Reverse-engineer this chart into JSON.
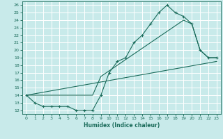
{
  "title": "",
  "xlabel": "Humidex (Indice chaleur)",
  "bg_color": "#c8eaea",
  "grid_color": "#ffffff",
  "line_color": "#1a6b5a",
  "xlim": [
    -0.5,
    23.5
  ],
  "ylim": [
    11.5,
    26.5
  ],
  "xticks": [
    0,
    1,
    2,
    3,
    4,
    5,
    6,
    7,
    8,
    9,
    10,
    11,
    12,
    13,
    14,
    15,
    16,
    17,
    18,
    19,
    20,
    21,
    22,
    23
  ],
  "yticks": [
    12,
    13,
    14,
    15,
    16,
    17,
    18,
    19,
    20,
    21,
    22,
    23,
    24,
    25,
    26
  ],
  "line1_x": [
    0,
    1,
    2,
    3,
    4,
    5,
    6,
    7,
    8,
    9,
    10,
    11,
    12,
    13,
    14,
    15,
    16,
    17,
    18,
    19,
    20,
    21,
    22,
    23
  ],
  "line1_y": [
    14,
    13,
    12.5,
    12.5,
    12.5,
    12.5,
    12,
    12,
    12,
    14,
    17,
    18.5,
    19,
    21,
    22,
    23.5,
    25,
    26,
    25,
    24.5,
    23.5,
    20,
    19,
    19
  ],
  "line2_x": [
    0,
    23
  ],
  "line2_y": [
    14,
    18.5
  ],
  "line3_x": [
    0,
    8,
    9,
    19,
    20,
    21,
    22,
    23
  ],
  "line3_y": [
    14,
    14,
    16.5,
    24,
    23.5,
    20,
    19,
    19
  ]
}
